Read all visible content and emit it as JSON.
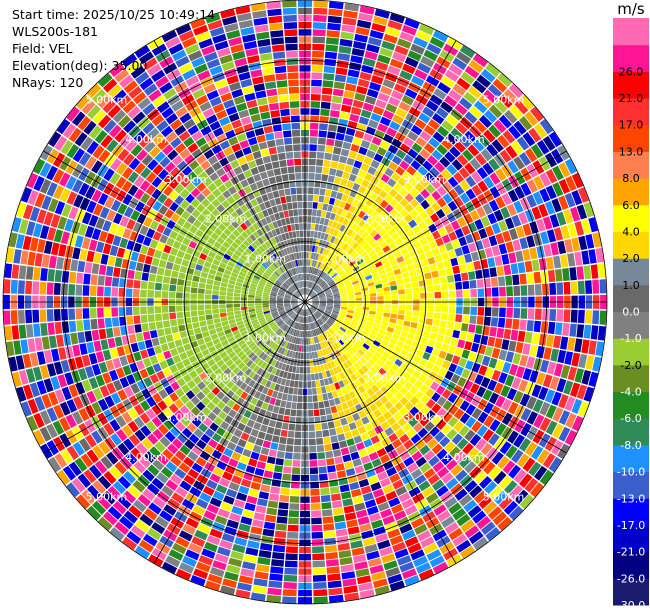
{
  "header": {
    "start_time": "Start time: 2025/10/25 10:49:14",
    "instrument": "WLS200s-181",
    "field": "Field: VEL",
    "elevation": "Elevation(deg): 35.00",
    "nrays": "NRays: 120"
  },
  "chart_data": {
    "type": "heatmap",
    "projection": "polar-ppi",
    "field": "VEL",
    "units": "m/s",
    "rays": 120,
    "elevation_deg": 35.0,
    "range_km_max": 5.0,
    "range_rings_km": [
      1,
      2,
      3,
      4,
      5
    ],
    "range_labels": [
      "1.00km",
      "2.00km",
      "3.00km",
      "4.00km",
      "5.00km"
    ],
    "colorbar": {
      "title": "m/s",
      "levels": [
        -30.0,
        -26.0,
        -21.0,
        -17.0,
        -13.0,
        -10.0,
        -8.0,
        -6.0,
        -4.0,
        -2.0,
        -1.0,
        0.0,
        1.0,
        2.0,
        4.0,
        6.0,
        8.0,
        13.0,
        17.0,
        21.0,
        26.0
      ],
      "labels": [
        "-30.0",
        "-26.0",
        "-21.0",
        "-17.0",
        "-13.0",
        "-10.0",
        "-8.0",
        "-6.0",
        "-4.0",
        "-2.0",
        "-1.0",
        "0.0",
        "1.0",
        "2.0",
        "4.0",
        "6.0",
        "8.0",
        "13.0",
        "17.0",
        "21.0",
        "26.0"
      ],
      "colors": [
        "#1a1a6e",
        "#000080",
        "#0000c8",
        "#0000ff",
        "#3a5fcd",
        "#1e90ff",
        "#2e8b57",
        "#228b22",
        "#6b8e23",
        "#9acd32",
        "#808080",
        "#696969",
        "#778899",
        "#ffd700",
        "#ffff00",
        "#ffa500",
        "#ff7f50",
        "#ff4500",
        "#ff3030",
        "#ff0000",
        "#ff1493",
        "#ff69b4"
      ]
    },
    "inner_pattern": {
      "east_half": "positive velocity, mostly 2.0–4.0 (yellow)",
      "west_half": "negative velocity, mostly -1.0 to -2.0 (olive/yellow-green)",
      "center": "near zero (gray)",
      "outer": "noise beyond ~2.3 km"
    }
  }
}
